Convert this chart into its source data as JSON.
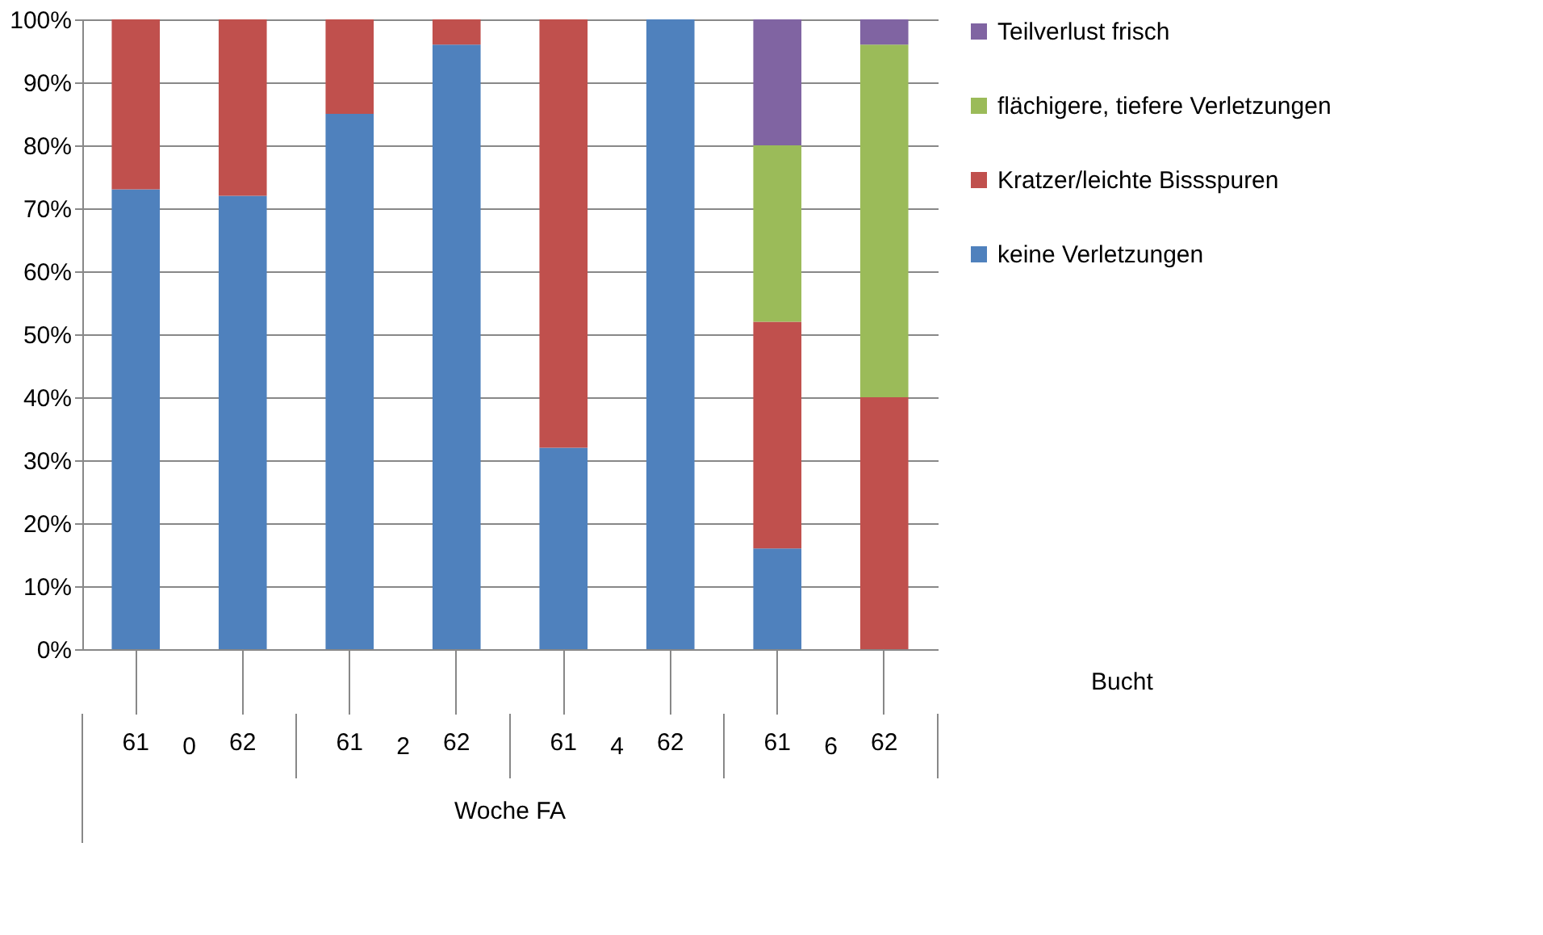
{
  "chart_data": {
    "type": "bar",
    "stacked": true,
    "categories": [
      "61",
      "62",
      "61",
      "62",
      "61",
      "62",
      "61",
      "62"
    ],
    "series": [
      {
        "name": "keine Verletzungen",
        "color": "#4f81bd",
        "values": [
          73,
          72,
          85,
          96,
          32,
          100,
          16,
          0
        ]
      },
      {
        "name": "Kratzer/leichte Bissspuren",
        "color": "#c0504d",
        "values": [
          27,
          28,
          15,
          4,
          68,
          0,
          36,
          40
        ]
      },
      {
        "name": "flächigere, tiefere Verletzungen",
        "color": "#9bbb59",
        "values": [
          0,
          0,
          0,
          0,
          0,
          0,
          28,
          56
        ]
      },
      {
        "name": "Teilverlust frisch",
        "color": "#8064a2",
        "values": [
          0,
          0,
          0,
          0,
          0,
          0,
          20,
          4
        ]
      }
    ],
    "ylim": [
      0,
      100
    ],
    "yticks": [
      {
        "value": 0,
        "label": "0%"
      },
      {
        "value": 10,
        "label": "10%"
      },
      {
        "value": 20,
        "label": "20%"
      },
      {
        "value": 30,
        "label": "30%"
      },
      {
        "value": 40,
        "label": "40%"
      },
      {
        "value": 50,
        "label": "50%"
      },
      {
        "value": 60,
        "label": "60%"
      },
      {
        "value": 70,
        "label": "70%"
      },
      {
        "value": 80,
        "label": "80%"
      },
      {
        "value": 90,
        "label": "90%"
      },
      {
        "value": 100,
        "label": "100%"
      }
    ],
    "xlabel": "Woche FA",
    "annotations": [
      "0",
      "2",
      "4",
      "6",
      "Bucht"
    ],
    "grid": "y",
    "legend": "right"
  }
}
